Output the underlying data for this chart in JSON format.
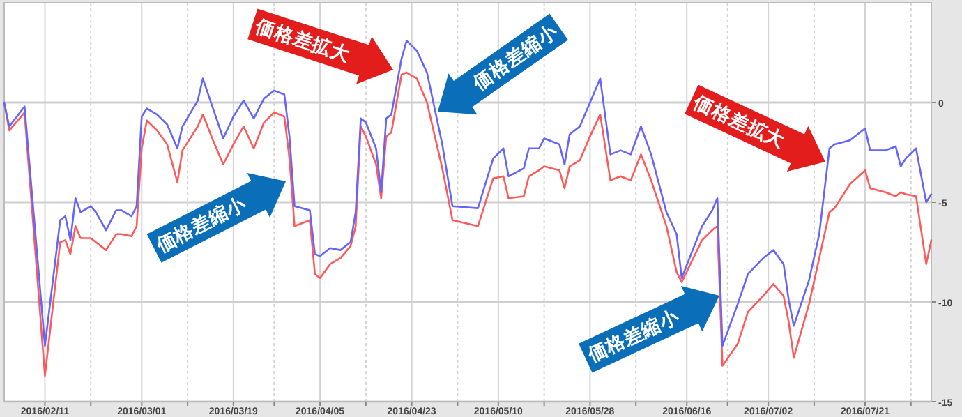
{
  "chart_data": {
    "type": "line",
    "x": [
      "2016-02-03",
      "2016-02-04",
      "2016-02-07",
      "2016-02-11",
      "2016-02-14",
      "2016-02-15",
      "2016-02-16",
      "2016-02-17",
      "2016-02-18",
      "2016-02-20",
      "2016-02-21",
      "2016-02-23",
      "2016-02-25",
      "2016-02-26",
      "2016-02-28",
      "2016-02-29",
      "2016-03-01",
      "2016-03-02",
      "2016-03-04",
      "2016-03-06",
      "2016-03-08",
      "2016-03-09",
      "2016-03-12",
      "2016-03-13",
      "2016-03-15",
      "2016-03-17",
      "2016-03-19",
      "2016-03-21",
      "2016-03-23",
      "2016-03-25",
      "2016-03-27",
      "2016-03-29",
      "2016-03-30",
      "2016-03-31",
      "2016-04-03",
      "2016-04-04",
      "2016-04-05",
      "2016-04-07",
      "2016-04-09",
      "2016-04-11",
      "2016-04-12",
      "2016-04-13",
      "2016-04-14",
      "2016-04-16",
      "2016-04-17",
      "2016-04-18",
      "2016-04-19",
      "2016-04-21",
      "2016-04-22",
      "2016-04-24",
      "2016-04-26",
      "2016-04-29",
      "2016-05-01",
      "2016-05-06",
      "2016-05-09",
      "2016-05-11",
      "2016-05-12",
      "2016-05-15",
      "2016-05-16",
      "2016-05-18",
      "2016-05-19",
      "2016-05-22",
      "2016-05-23",
      "2016-05-24",
      "2016-05-26",
      "2016-05-28",
      "2016-05-30",
      "2016-06-01",
      "2016-06-03",
      "2016-06-05",
      "2016-06-07",
      "2016-06-09",
      "2016-06-12",
      "2016-06-14",
      "2016-06-15",
      "2016-06-19",
      "2016-06-21",
      "2016-06-22",
      "2016-06-23",
      "2016-06-26",
      "2016-06-28",
      "2016-07-01",
      "2016-07-03",
      "2016-07-05",
      "2016-07-06",
      "2016-07-07",
      "2016-07-10",
      "2016-07-12",
      "2016-07-14",
      "2016-07-15",
      "2016-07-18",
      "2016-07-21",
      "2016-07-22",
      "2016-07-25",
      "2016-07-27",
      "2016-07-28",
      "2016-07-29",
      "2016-07-31",
      "2016-08-02",
      "2016-08-03"
    ],
    "series": [
      {
        "color": "#6464ff",
        "values": [
          0,
          -1.2,
          -0.2,
          -12.2,
          -5.9,
          -5.7,
          -6.9,
          -4.8,
          -5.5,
          -5.2,
          -5.5,
          -6.4,
          -5.4,
          -5.4,
          -5.7,
          -5.2,
          -0.7,
          -0.3,
          -0.6,
          -1.1,
          -2.3,
          -1.2,
          0.1,
          1.2,
          -0.3,
          -1.8,
          -0.7,
          0.1,
          -0.8,
          0.2,
          0.6,
          0.4,
          -1.7,
          -5.2,
          -5.4,
          -7.6,
          -7.7,
          -7.3,
          -7.4,
          -7.0,
          -5.5,
          -0.8,
          -1.0,
          -2.3,
          -4.5,
          -0.8,
          -0.6,
          2.2,
          3.1,
          2.6,
          1.5,
          -2.1,
          -5.2,
          -5.3,
          -2.8,
          -2.3,
          -3.7,
          -3.3,
          -2.3,
          -2.3,
          -1.8,
          -2.1,
          -3.1,
          -1.6,
          -1.2,
          0,
          1.2,
          -2.6,
          -2.4,
          -2.6,
          -1.2,
          -2.6,
          -5.5,
          -6.6,
          -8.8,
          -6.2,
          -5.4,
          -4.8,
          -12.2,
          -10.1,
          -8.6,
          -7.8,
          -7.4,
          -8.1,
          -9.9,
          -11.2,
          -8.9,
          -6.6,
          -2.3,
          -2.1,
          -1.9,
          -1.3,
          -2.4,
          -2.4,
          -2.2,
          -3.2,
          -2.8,
          -2.3,
          -5.0,
          -4.6
        ]
      },
      {
        "color": "#ff5a5a",
        "values": [
          0,
          -1.4,
          -0.5,
          -13.7,
          -7.0,
          -6.9,
          -7.6,
          -6.2,
          -6.8,
          -6.8,
          -7.0,
          -7.4,
          -6.6,
          -6.6,
          -6.7,
          -6.2,
          -2.3,
          -0.9,
          -1.4,
          -2.1,
          -4.0,
          -2.4,
          -1.2,
          -0.6,
          -1.9,
          -3.1,
          -2.1,
          -1.2,
          -2.3,
          -1.0,
          -0.5,
          -0.7,
          -2.8,
          -6.2,
          -5.9,
          -8.6,
          -8.8,
          -8.1,
          -7.8,
          -7.2,
          -6.2,
          -1.2,
          -1.7,
          -3.1,
          -4.8,
          -1.7,
          -1.5,
          1.4,
          1.5,
          1.2,
          0,
          -3.3,
          -5.9,
          -6.2,
          -3.8,
          -3.7,
          -4.8,
          -4.7,
          -3.7,
          -3.4,
          -3.2,
          -3.4,
          -4.3,
          -3.2,
          -2.9,
          -1.7,
          -0.6,
          -3.9,
          -3.7,
          -3.9,
          -2.6,
          -3.9,
          -6.2,
          -8.5,
          -9.0,
          -6.9,
          -6.4,
          -6.2,
          -13.2,
          -12.1,
          -10.5,
          -9.7,
          -9.1,
          -9.7,
          -11.0,
          -12.8,
          -10.1,
          -7.8,
          -5.5,
          -5.3,
          -4.1,
          -3.4,
          -4.3,
          -4.5,
          -4.7,
          -4.5,
          -4.6,
          -4.7,
          -8.1,
          -6.9
        ]
      }
    ],
    "xlim": [
      "2016-02-03",
      "2016-08-03"
    ],
    "ylim": [
      -15,
      5
    ],
    "xticks": [
      {
        "value": "2016-02-11",
        "label": "2016/02/11"
      },
      {
        "value": "2016-02-20",
        "label": null
      },
      {
        "value": "2016-03-01",
        "label": "2016/03/01"
      },
      {
        "value": "2016-03-10",
        "label": null
      },
      {
        "value": "2016-03-19",
        "label": "2016/03/19"
      },
      {
        "value": "2016-03-27",
        "label": null
      },
      {
        "value": "2016-04-05",
        "label": "2016/04/05"
      },
      {
        "value": "2016-04-14",
        "label": null
      },
      {
        "value": "2016-04-23",
        "label": "2016/04/23"
      },
      {
        "value": "2016-05-02",
        "label": null
      },
      {
        "value": "2016-05-10",
        "label": "2016/05/10"
      },
      {
        "value": "2016-05-19",
        "label": null
      },
      {
        "value": "2016-05-28",
        "label": "2016/05/28"
      },
      {
        "value": "2016-06-06",
        "label": null
      },
      {
        "value": "2016-06-16",
        "label": "2016/06/16"
      },
      {
        "value": "2016-06-24",
        "label": null
      },
      {
        "value": "2016-07-02",
        "label": "2016/07/02"
      },
      {
        "value": "2016-07-11",
        "label": null
      },
      {
        "value": "2016-07-21",
        "label": "2016/07/21"
      },
      {
        "value": "2016-07-30",
        "label": null
      }
    ],
    "yticks": [
      0,
      -5,
      -10,
      -15
    ],
    "grid": true,
    "annotations": [
      "価格差拡大",
      "価格差縮小",
      "価格差縮小",
      "価格差拡大",
      "価格差縮小"
    ]
  }
}
